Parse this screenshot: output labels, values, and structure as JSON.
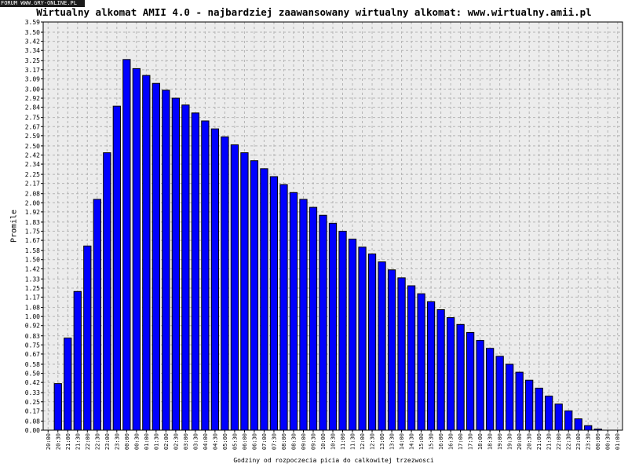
{
  "watermark": "FORUM WWW.GRY-ONLINE.PL",
  "chart_data": {
    "type": "bar",
    "title": "Wirtualny alkomat AMII 4.0 - najbardziej zaawansowany wirtualny alkomat: www.wirtualny.amii.pl",
    "xlabel": "Godziny od rozpoczecia picia do calkowitej trzezwosci",
    "ylabel": "Promile",
    "ylim": [
      0,
      3.59
    ],
    "grid": true,
    "bar_color": "#0000ff",
    "plot_background": "#ececec",
    "yticks": [
      "0.00",
      "0.08",
      "0.17",
      "0.25",
      "0.33",
      "0.42",
      "0.50",
      "0.58",
      "0.67",
      "0.75",
      "0.83",
      "0.92",
      "1.00",
      "1.08",
      "1.17",
      "1.25",
      "1.33",
      "1.42",
      "1.50",
      "1.58",
      "1.67",
      "1.75",
      "1.83",
      "1.92",
      "2.00",
      "2.08",
      "2.17",
      "2.25",
      "2.34",
      "2.42",
      "2.50",
      "2.59",
      "2.67",
      "2.75",
      "2.84",
      "2.92",
      "3.00",
      "3.09",
      "3.17",
      "3.25",
      "3.34",
      "3.42",
      "3.50",
      "3.59"
    ],
    "categories": [
      "20:00",
      "20:30",
      "21:00",
      "21:30",
      "22:00",
      "22:30",
      "23:00",
      "23:30",
      "00:00",
      "00:30",
      "01:00",
      "01:30",
      "02:00",
      "02:30",
      "03:00",
      "03:30",
      "04:00",
      "04:30",
      "05:00",
      "05:30",
      "06:00",
      "06:30",
      "07:00",
      "07:30",
      "08:00",
      "08:30",
      "09:00",
      "09:30",
      "10:00",
      "10:30",
      "11:00",
      "11:30",
      "12:00",
      "12:30",
      "13:00",
      "13:30",
      "14:00",
      "14:30",
      "15:00",
      "15:30",
      "16:00",
      "16:30",
      "17:00",
      "17:30",
      "18:00",
      "18:30",
      "19:00",
      "19:30",
      "20:00",
      "20:30",
      "21:00",
      "21:30",
      "22:00",
      "22:30",
      "23:00",
      "23:30",
      "00:00",
      "00:30",
      "01:00"
    ],
    "values": [
      0,
      0.41,
      0.81,
      1.22,
      1.62,
      2.03,
      2.44,
      2.85,
      3.26,
      3.18,
      3.12,
      3.05,
      2.99,
      2.92,
      2.86,
      2.79,
      2.72,
      2.65,
      2.58,
      2.51,
      2.44,
      2.37,
      2.3,
      2.23,
      2.16,
      2.09,
      2.03,
      1.96,
      1.89,
      1.82,
      1.75,
      1.68,
      1.61,
      1.55,
      1.48,
      1.41,
      1.34,
      1.27,
      1.2,
      1.13,
      1.06,
      0.99,
      0.93,
      0.86,
      0.79,
      0.72,
      0.65,
      0.58,
      0.51,
      0.44,
      0.37,
      0.3,
      0.23,
      0.17,
      0.1,
      0.04,
      0.01,
      0,
      0
    ]
  }
}
